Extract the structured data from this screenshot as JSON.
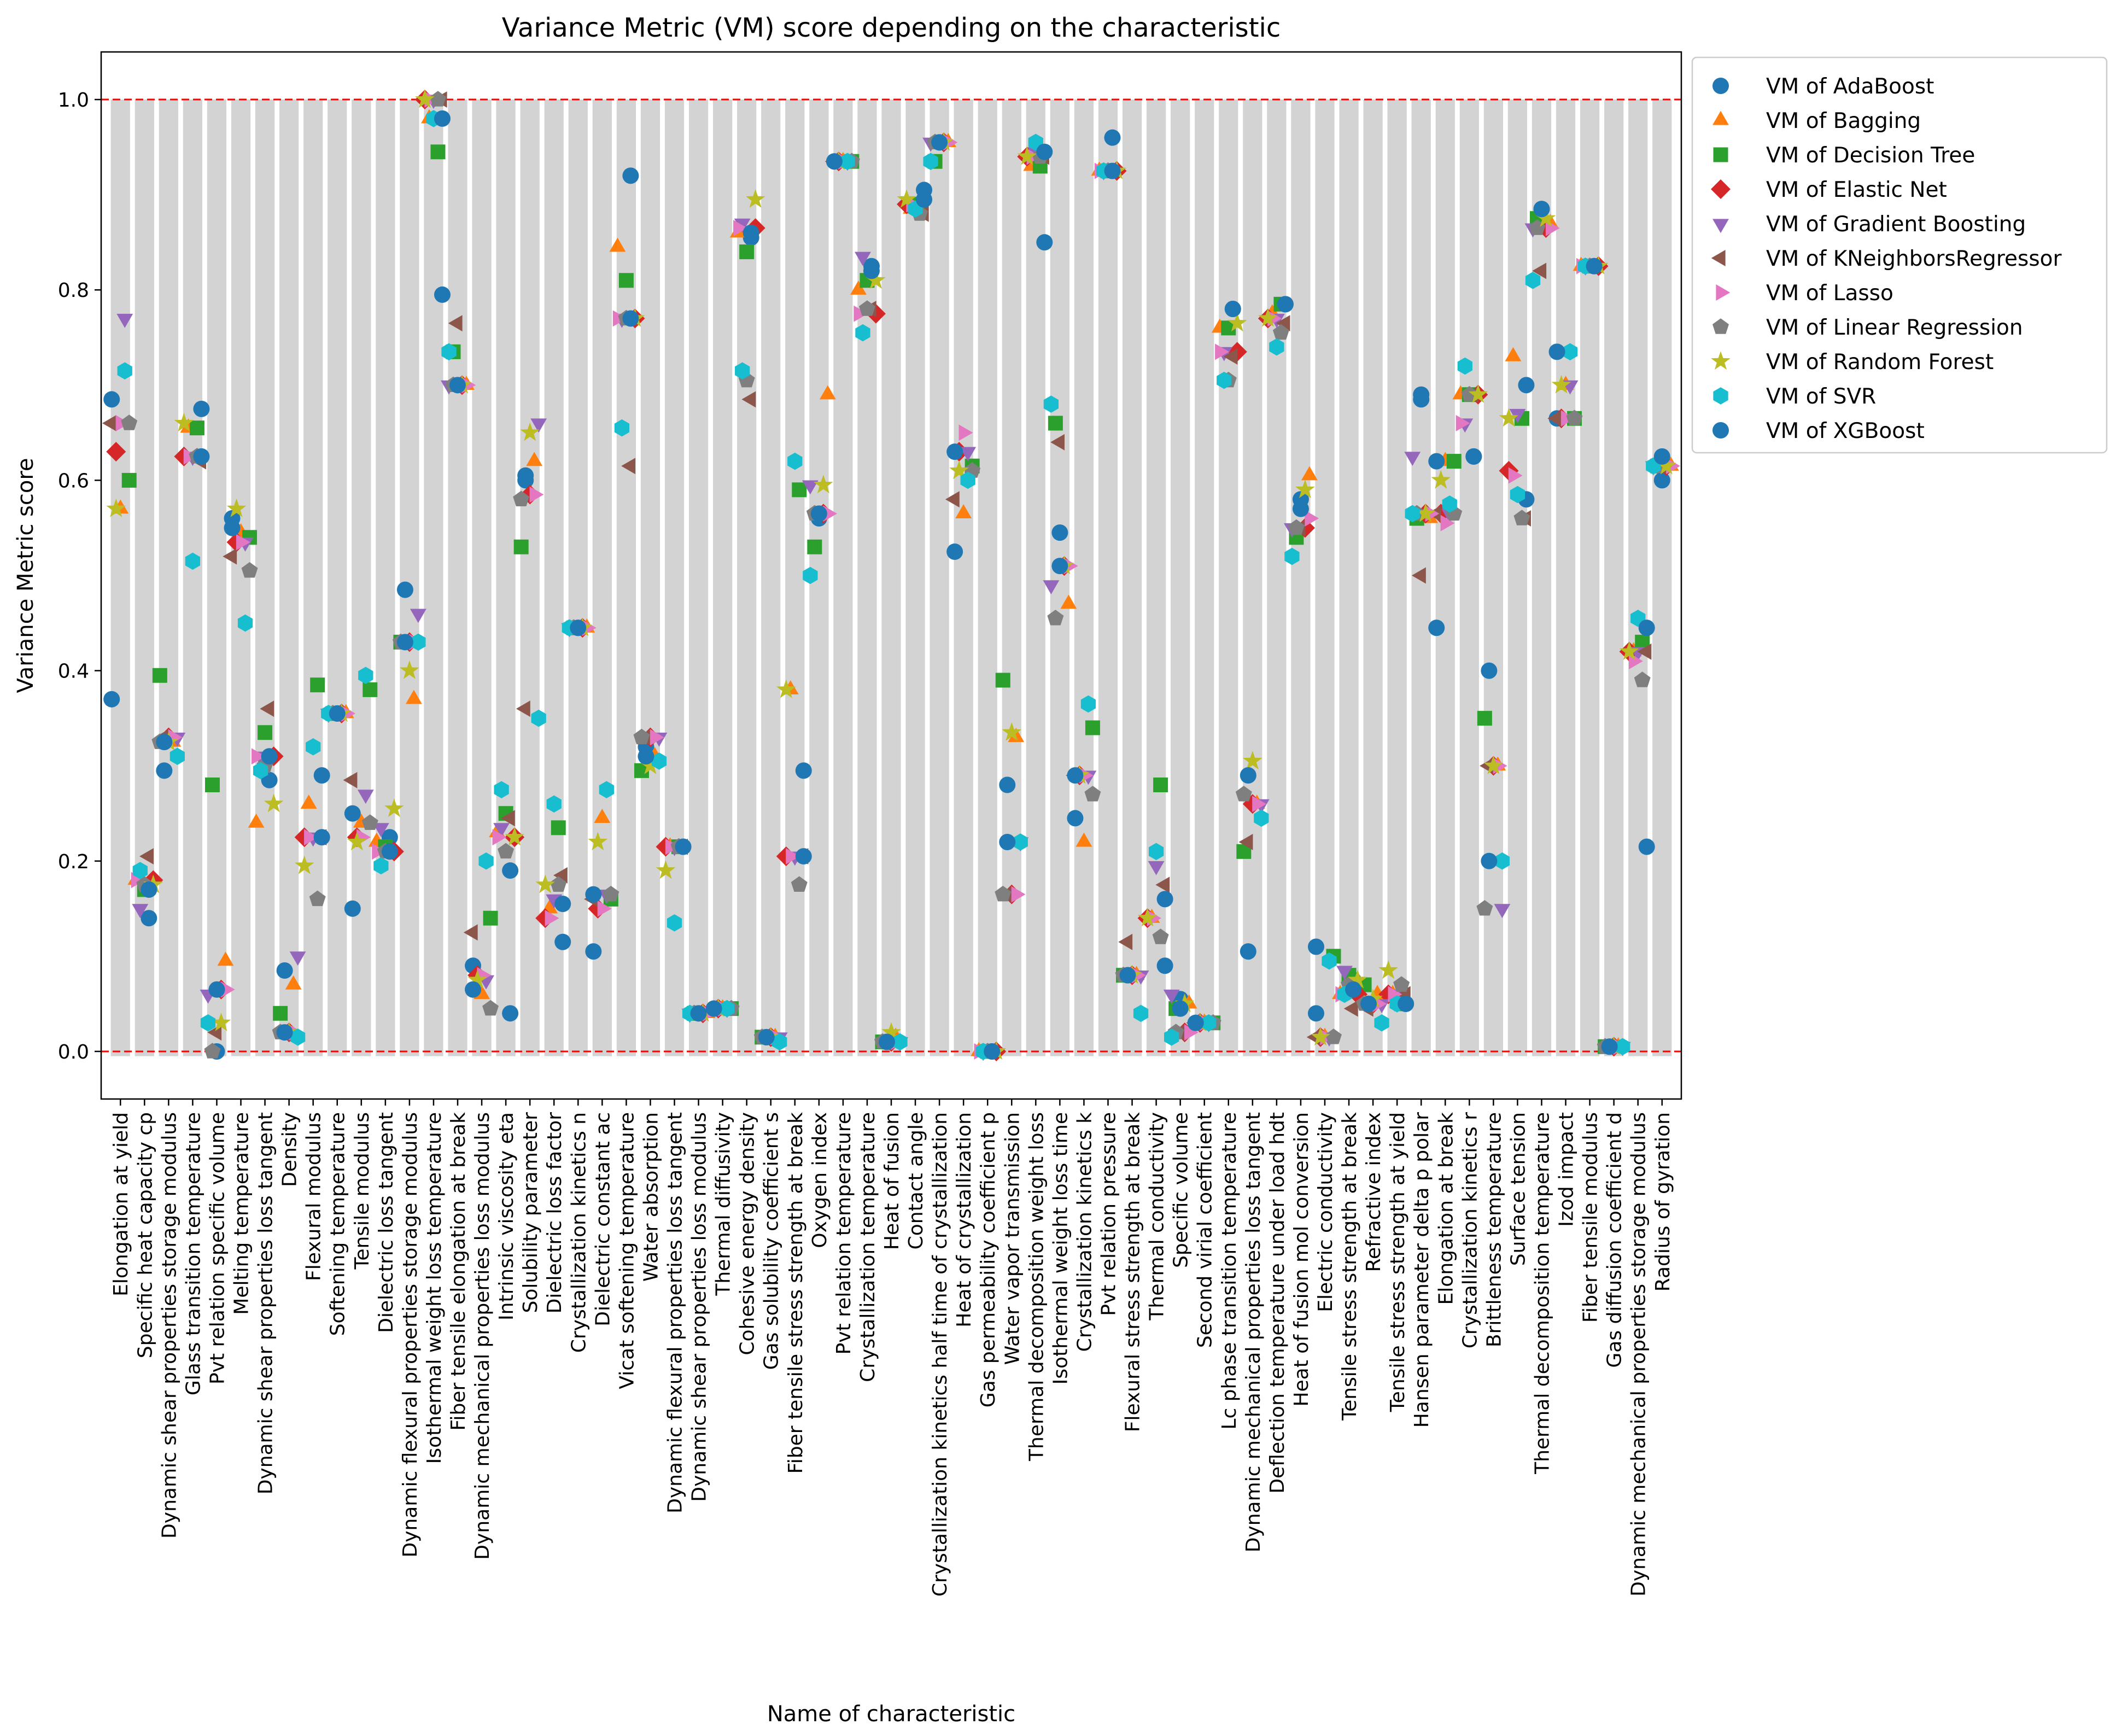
{
  "chart_data": {
    "type": "scatter",
    "title": "Variance Metric (VM) score depending on the characteristic",
    "xlabel": "Name of characteristic",
    "ylabel": "Variance Metric score",
    "ylim": [
      -0.05,
      1.05
    ],
    "yticks": [
      "0.0",
      "0.2",
      "0.4",
      "0.6",
      "0.8",
      "1.0"
    ],
    "reference_lines": [
      0.0,
      1.0
    ],
    "reference_line_color": "#ff0000",
    "band_color": "#d3d3d3",
    "grid": false,
    "legend_position": "outside-right",
    "categories": [
      "Elongation at yield",
      "Specific heat capacity cp",
      "Dynamic shear properties storage modulus",
      "Glass transition temperature",
      "Pvt relation specific volume",
      "Melting temperature",
      "Dynamic shear properties loss tangent",
      "Density",
      "Flexural modulus",
      "Softening temperature",
      "Tensile modulus",
      "Dielectric loss tangent",
      "Dynamic flexural properties storage modulus",
      "Isothermal weight loss temperature",
      "Fiber tensile elongation at break",
      "Dynamic mechanical properties loss modulus",
      "Intrinsic viscosity eta",
      "Solubility parameter",
      "Dielectric loss factor",
      "Crystallization kinetics n",
      "Dielectric constant ac",
      "Vicat softening temperature",
      "Water absorption",
      "Dynamic flexural properties loss tangent",
      "Dynamic shear properties loss modulus",
      "Thermal diffusivity",
      "Cohesive energy density",
      "Gas solubility coefficient s",
      "Fiber tensile stress strength at break",
      "Oxygen index",
      "Pvt relation temperature",
      "Crystallization temperature",
      "Heat of fusion",
      "Contact angle",
      "Crystallization kinetics half time of crystallization",
      "Heat of crystallization",
      "Gas permeability coefficient p",
      "Water vapor transmission",
      "Thermal decomposition weight loss",
      "Isothermal weight loss time",
      "Crystallization kinetics k",
      "Pvt relation pressure",
      "Flexural stress strength at break",
      "Thermal conductivity",
      "Specific volume",
      "Second virial coefficient",
      "Lc phase transition temperature",
      "Dynamic mechanical properties loss tangent",
      "Deflection temperature under load hdt",
      "Heat of fusion mol conversion",
      "Electric conductivity",
      "Tensile stress strength at break",
      "Refractive index",
      "Tensile stress strength at yield",
      "Hansen parameter delta p polar",
      "Elongation at break",
      "Crystallization kinetics r",
      "Brittleness temperature",
      "Surface tension",
      "Thermal decomposition temperature",
      "Izod impact",
      "Fiber tensile modulus",
      "Gas diffusion coefficient d",
      "Dynamic mechanical properties storage modulus",
      "Radius of gyration"
    ],
    "series": [
      {
        "name": "VM of AdaBoost",
        "color": "#1f77b4",
        "marker": "circle",
        "values": [
          0.37,
          0.14,
          0.295,
          0.675,
          0.0,
          0.56,
          0.285,
          0.085,
          0.29,
          0.355,
          0.15,
          0.225,
          0.485,
          0.795,
          0.7,
          0.09,
          0.19,
          0.6,
          0.115,
          0.445,
          0.105,
          0.92,
          0.32,
          0.215,
          0.04,
          0.045,
          0.855,
          0.015,
          0.295,
          0.56,
          0.935,
          0.825,
          0.01,
          0.905,
          0.955,
          0.525,
          0.0,
          0.28,
          0.85,
          0.545,
          0.245,
          0.96,
          0.08,
          0.09,
          0.055,
          0.03,
          0.78,
          0.105,
          0.785,
          0.58,
          0.04,
          0.075,
          0.05,
          0.05,
          0.685,
          0.445,
          0.625,
          0.4,
          0.58,
          0.885,
          0.665,
          0.825,
          0.005,
          0.215,
          0.6
        ]
      },
      {
        "name": "VM of Bagging",
        "color": "#ff7f0e",
        "marker": "triangle-up",
        "values": [
          0.57,
          0.18,
          0.325,
          0.655,
          0.095,
          0.545,
          0.24,
          0.07,
          0.26,
          0.355,
          0.24,
          0.22,
          0.37,
          0.98,
          0.7,
          0.06,
          0.23,
          0.62,
          0.15,
          0.445,
          0.245,
          0.845,
          0.31,
          0.215,
          0.04,
          0.045,
          0.86,
          0.015,
          0.38,
          0.69,
          0.935,
          0.8,
          0.015,
          0.885,
          0.955,
          0.565,
          0.0,
          0.33,
          0.93,
          0.47,
          0.22,
          0.925,
          0.08,
          0.14,
          0.05,
          0.03,
          0.76,
          0.26,
          0.775,
          0.605,
          0.015,
          0.06,
          0.06,
          0.06,
          0.56,
          0.62,
          0.69,
          0.3,
          0.73,
          0.87,
          0.7,
          0.825,
          0.005,
          0.42,
          0.615
        ]
      },
      {
        "name": "VM of Decision Tree",
        "color": "#2ca02c",
        "marker": "square",
        "values": [
          0.6,
          0.17,
          0.395,
          0.655,
          0.28,
          0.54,
          0.335,
          0.04,
          0.385,
          0.355,
          0.38,
          0.215,
          0.43,
          0.945,
          0.735,
          0.14,
          0.25,
          0.53,
          0.235,
          0.445,
          0.16,
          0.81,
          0.295,
          0.215,
          0.04,
          0.045,
          0.84,
          0.015,
          0.59,
          0.53,
          0.935,
          0.81,
          0.01,
          0.89,
          0.935,
          0.615,
          0.0,
          0.39,
          0.93,
          0.66,
          0.34,
          0.925,
          0.08,
          0.28,
          0.045,
          0.03,
          0.76,
          0.21,
          0.785,
          0.54,
          0.1,
          0.08,
          0.07,
          0.05,
          0.56,
          0.62,
          0.69,
          0.35,
          0.665,
          0.875,
          0.665,
          0.825,
          0.005,
          0.43,
          0.615
        ]
      },
      {
        "name": "VM of Elastic Net",
        "color": "#d62728",
        "marker": "diamond",
        "values": [
          0.63,
          0.18,
          0.33,
          0.625,
          0.065,
          0.535,
          0.31,
          0.02,
          0.225,
          0.355,
          0.225,
          0.21,
          0.43,
          1.0,
          0.7,
          0.08,
          0.225,
          0.585,
          0.14,
          0.445,
          0.15,
          0.77,
          0.33,
          0.215,
          0.04,
          0.045,
          0.865,
          0.015,
          0.205,
          0.565,
          0.935,
          0.775,
          0.01,
          0.89,
          0.955,
          0.63,
          0.0,
          0.165,
          0.94,
          0.51,
          0.29,
          0.925,
          0.08,
          0.14,
          0.02,
          0.03,
          0.735,
          0.26,
          0.77,
          0.55,
          0.015,
          0.06,
          0.05,
          0.06,
          0.565,
          0.565,
          0.69,
          0.3,
          0.61,
          0.865,
          0.665,
          0.825,
          0.005,
          0.42,
          0.615
        ]
      },
      {
        "name": "VM of Gradient Boosting",
        "color": "#9467bd",
        "marker": "triangle-down",
        "values": [
          0.77,
          0.15,
          0.33,
          0.625,
          0.06,
          0.535,
          0.31,
          0.1,
          0.225,
          0.355,
          0.27,
          0.235,
          0.46,
          1.0,
          0.7,
          0.075,
          0.235,
          0.66,
          0.16,
          0.445,
          0.165,
          0.77,
          0.33,
          0.215,
          0.04,
          0.045,
          0.87,
          0.015,
          0.205,
          0.595,
          0.935,
          0.835,
          0.01,
          0.885,
          0.955,
          0.63,
          0.0,
          0.22,
          0.945,
          0.49,
          0.29,
          0.925,
          0.08,
          0.195,
          0.06,
          0.03,
          0.735,
          0.26,
          0.77,
          0.55,
          0.015,
          0.085,
          0.05,
          0.06,
          0.625,
          0.565,
          0.66,
          0.15,
          0.67,
          0.865,
          0.7,
          0.825,
          0.005,
          0.42,
          0.615
        ]
      },
      {
        "name": "VM of KNeighborsRegressor",
        "color": "#8c564b",
        "marker": "triangle-left",
        "values": [
          0.66,
          0.205,
          0.33,
          0.62,
          0.02,
          0.52,
          0.36,
          0.02,
          0.225,
          0.355,
          0.285,
          0.21,
          0.43,
          1.0,
          0.765,
          0.125,
          0.245,
          0.36,
          0.185,
          0.445,
          0.16,
          0.615,
          0.33,
          0.215,
          0.04,
          0.045,
          0.685,
          0.015,
          0.205,
          0.565,
          0.935,
          0.78,
          0.01,
          0.88,
          0.955,
          0.58,
          0.0,
          0.165,
          0.94,
          0.64,
          0.29,
          0.925,
          0.115,
          0.175,
          0.02,
          0.03,
          0.73,
          0.22,
          0.765,
          0.55,
          0.015,
          0.045,
          0.045,
          0.06,
          0.5,
          0.565,
          0.69,
          0.3,
          0.56,
          0.82,
          0.665,
          0.825,
          0.005,
          0.42,
          0.615
        ]
      },
      {
        "name": "VM of Lasso",
        "color": "#e377c2",
        "marker": "triangle-right",
        "values": [
          0.66,
          0.18,
          0.33,
          0.625,
          0.065,
          0.535,
          0.31,
          0.02,
          0.225,
          0.355,
          0.225,
          0.21,
          0.43,
          1.0,
          0.7,
          0.08,
          0.225,
          0.585,
          0.14,
          0.445,
          0.15,
          0.77,
          0.33,
          0.215,
          0.04,
          0.045,
          0.865,
          0.015,
          0.205,
          0.565,
          0.935,
          0.775,
          0.01,
          0.89,
          0.955,
          0.65,
          0.0,
          0.165,
          0.94,
          0.51,
          0.29,
          0.925,
          0.08,
          0.14,
          0.02,
          0.03,
          0.735,
          0.26,
          0.77,
          0.56,
          0.015,
          0.06,
          0.05,
          0.06,
          0.565,
          0.555,
          0.66,
          0.3,
          0.605,
          0.865,
          0.665,
          0.825,
          0.005,
          0.41,
          0.615
        ]
      },
      {
        "name": "VM of Linear Regression",
        "color": "#7f7f7f",
        "marker": "pentagon",
        "values": [
          0.66,
          0.175,
          0.325,
          0.625,
          0.0,
          0.505,
          0.3,
          0.02,
          0.16,
          0.355,
          0.24,
          0.21,
          0.43,
          1.0,
          0.7,
          0.045,
          0.21,
          0.58,
          0.175,
          0.445,
          0.165,
          0.77,
          0.33,
          0.215,
          0.04,
          0.045,
          0.705,
          0.015,
          0.175,
          0.565,
          0.935,
          0.78,
          0.01,
          0.88,
          0.955,
          0.61,
          0.0,
          0.165,
          0.94,
          0.455,
          0.27,
          0.925,
          0.08,
          0.12,
          0.02,
          0.03,
          0.705,
          0.27,
          0.755,
          0.55,
          0.015,
          0.07,
          0.05,
          0.07,
          0.565,
          0.565,
          0.69,
          0.15,
          0.56,
          0.865,
          0.665,
          0.825,
          0.005,
          0.39,
          0.615
        ]
      },
      {
        "name": "VM of Random Forest",
        "color": "#bcbd22",
        "marker": "star",
        "values": [
          0.57,
          0.175,
          0.325,
          0.66,
          0.03,
          0.57,
          0.26,
          0.02,
          0.195,
          0.355,
          0.22,
          0.255,
          0.4,
          1.0,
          0.7,
          0.075,
          0.225,
          0.65,
          0.175,
          0.445,
          0.22,
          0.77,
          0.3,
          0.19,
          0.04,
          0.045,
          0.895,
          0.015,
          0.38,
          0.595,
          0.935,
          0.81,
          0.02,
          0.895,
          0.955,
          0.61,
          0.0,
          0.335,
          0.94,
          0.51,
          0.29,
          0.925,
          0.08,
          0.14,
          0.05,
          0.03,
          0.765,
          0.305,
          0.77,
          0.59,
          0.015,
          0.075,
          0.055,
          0.085,
          0.565,
          0.6,
          0.69,
          0.3,
          0.665,
          0.875,
          0.7,
          0.825,
          0.005,
          0.42,
          0.615
        ]
      },
      {
        "name": "VM of SVR",
        "color": "#17becf",
        "marker": "hexagon",
        "values": [
          0.715,
          0.19,
          0.31,
          0.515,
          0.03,
          0.45,
          0.295,
          0.015,
          0.32,
          0.355,
          0.395,
          0.195,
          0.43,
          0.98,
          0.735,
          0.2,
          0.275,
          0.35,
          0.26,
          0.445,
          0.275,
          0.655,
          0.305,
          0.135,
          0.04,
          0.045,
          0.715,
          0.01,
          0.62,
          0.5,
          0.935,
          0.755,
          0.01,
          0.885,
          0.935,
          0.6,
          0.0,
          0.22,
          0.955,
          0.68,
          0.365,
          0.925,
          0.04,
          0.21,
          0.015,
          0.03,
          0.705,
          0.245,
          0.74,
          0.52,
          0.095,
          0.06,
          0.03,
          0.05,
          0.565,
          0.575,
          0.72,
          0.2,
          0.585,
          0.81,
          0.735,
          0.825,
          0.005,
          0.455,
          0.615
        ]
      },
      {
        "name": "VM of XGBoost",
        "color": "#1f77b4",
        "marker": "circle",
        "values": [
          0.685,
          0.17,
          0.325,
          0.625,
          0.065,
          0.55,
          0.31,
          0.02,
          0.225,
          0.355,
          0.25,
          0.21,
          0.43,
          0.98,
          0.7,
          0.065,
          0.04,
          0.605,
          0.155,
          0.445,
          0.165,
          0.77,
          0.31,
          0.215,
          0.04,
          0.045,
          0.86,
          0.015,
          0.205,
          0.565,
          0.935,
          0.82,
          0.01,
          0.895,
          0.955,
          0.63,
          0.0,
          0.22,
          0.945,
          0.51,
          0.29,
          0.925,
          0.08,
          0.16,
          0.045,
          0.03,
          0.78,
          0.29,
          0.785,
          0.57,
          0.11,
          0.065,
          0.05,
          0.05,
          0.69,
          0.62,
          0.625,
          0.2,
          0.7,
          0.885,
          0.735,
          0.825,
          0.005,
          0.445,
          0.625
        ]
      }
    ]
  }
}
